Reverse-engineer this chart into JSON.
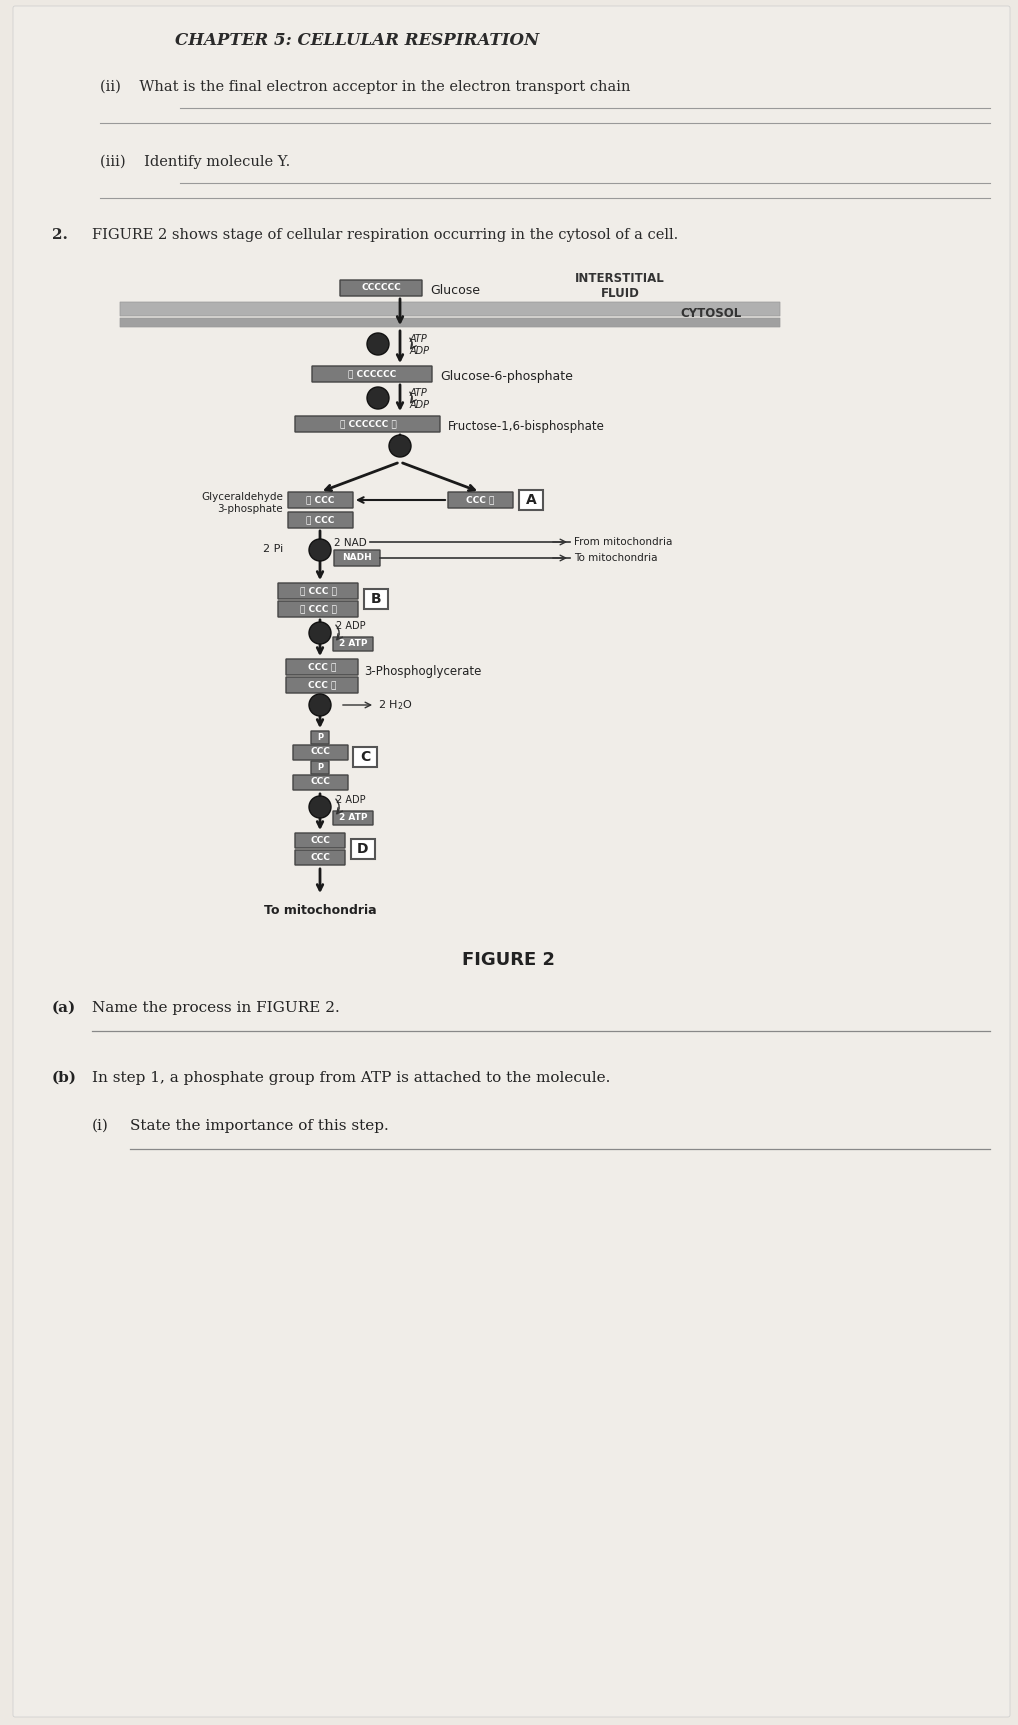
{
  "page_bg": "#ede9e3",
  "title": "CHAPTER 5: CELLULAR RESPIRATION",
  "q_ii": "(ii)    What is the final electron acceptor in the electron transport chain",
  "q_iii": "(iii)    Identify molecule Y.",
  "q2_num": "2.",
  "q2_intro": "FIGURE 2 shows stage of cellular respiration occurring in the cytosol of a cell.",
  "interstitial_label": "INTERSTITIAL\nFLUID",
  "cytosol_label": "CYTOSOL",
  "glucose_label": "Glucose",
  "glucose6p_label": "Glucose-6-phosphate",
  "fructose_label": "Fructose-1,6-bisphosphate",
  "glycer_label": "Glyceraldehyde\n3-phosphate",
  "phospho3_label": "3-Phosphoglycerate",
  "from_mito": "From mitochondria",
  "to_mito1": "To mitochondria",
  "to_mito2": "To mitochondria",
  "fig_caption": "FIGURE 2",
  "q_a_label": "(a)",
  "q_a_text": "Name the process in FIGURE 2.",
  "q_b_label": "(b)",
  "q_b_text": "In step 1, a phosphate group from ATP is attached to the molecule.",
  "q_bi_label": "(i)",
  "q_bi_text": "State the importance of this step.",
  "box_gray": "#7a7a7a",
  "box_med": "#999999",
  "arrow_color": "#1a1a1a",
  "circle_bg": "#2a2a2a",
  "white": "#ffffff",
  "text_dark": "#222222",
  "text_mid": "#444444",
  "line_color": "#888888"
}
